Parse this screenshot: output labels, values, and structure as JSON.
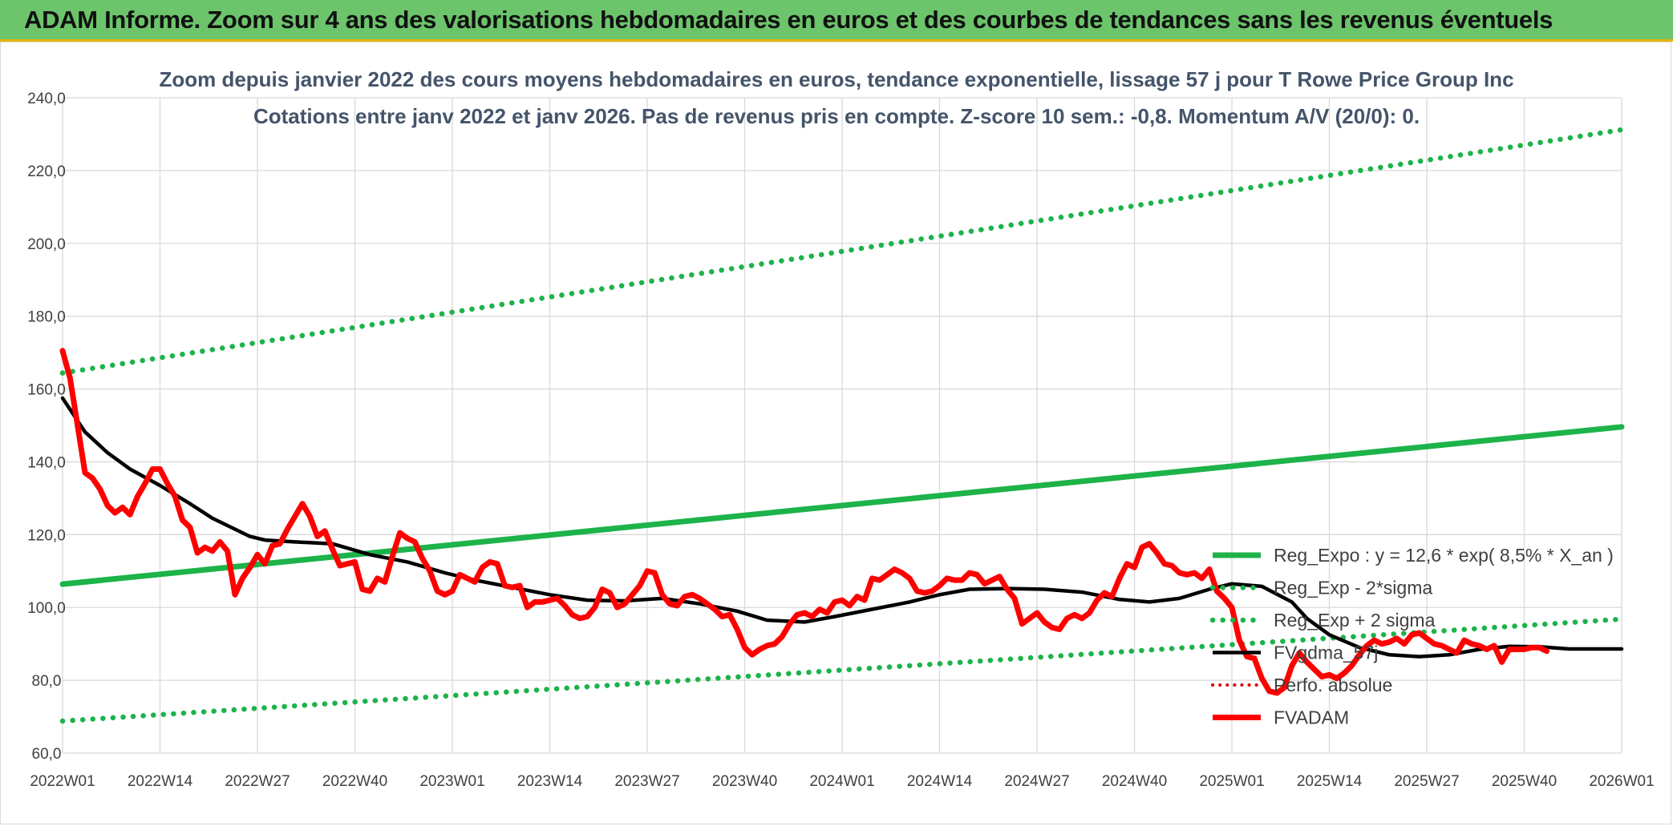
{
  "header": {
    "title": "ADAM Informe. Zoom sur 4 ans des valorisations hebdomadaires en euros et des courbes de tendances sans les revenus éventuels"
  },
  "colors": {
    "header_bg": "#6cc46b",
    "header_border": "#e8b400",
    "trend_green": "#1db34a",
    "price_red": "#ff0000",
    "ma_black": "#000000",
    "perf_red": "#e00000",
    "grid": "#d9d9d9"
  },
  "chart_data": {
    "type": "line",
    "title": "Zoom depuis janvier 2022 des cours moyens hebdomadaires en euros, tendance exponentielle, lissage 57 j pour T Rowe Price Group Inc",
    "subtitle": "Cotations entre janv 2022 et janv 2026. Pas de revenus pris en compte. Z-score 10 sem.: -0,8. Momentum A/V (20/0): 0.",
    "xlabel": "",
    "ylabel": "",
    "ylim": [
      60,
      240
    ],
    "y_ticks": [
      "60,0",
      "80,0",
      "100,0",
      "120,0",
      "140,0",
      "160,0",
      "180,0",
      "200,0",
      "220,0",
      "240,0"
    ],
    "x_ticks": [
      "2022W01",
      "2022W14",
      "2022W27",
      "2022W40",
      "2023W01",
      "2023W14",
      "2023W27",
      "2023W40",
      "2024W01",
      "2024W14",
      "2024W27",
      "2024W40",
      "2025W01",
      "2025W14",
      "2025W27",
      "2025W40",
      "2026W01"
    ],
    "x_tick_week_index": [
      0,
      13,
      26,
      39,
      52,
      65,
      78,
      91,
      104,
      117,
      130,
      143,
      156,
      169,
      182,
      195,
      208
    ],
    "x_range_weeks": [
      0,
      208
    ],
    "grid": true,
    "legend_position": "right, inside plot area",
    "series": [
      {
        "name": "Reg_Expo : y = 12,6 * exp( 8,5% *  X_an )",
        "style": "solid-thick",
        "color": "#1db34a",
        "points": [
          [
            0,
            106.4
          ],
          [
            208,
            149.6
          ]
        ]
      },
      {
        "name": "Reg_Exp - 2*sigma",
        "style": "dotted",
        "color": "#1db34a",
        "points": [
          [
            0,
            68.8
          ],
          [
            208,
            96.8
          ]
        ]
      },
      {
        "name": "Reg_Exp + 2 sigma",
        "style": "dotted",
        "color": "#1db34a",
        "points": [
          [
            0,
            164.4
          ],
          [
            208,
            231.2
          ]
        ]
      },
      {
        "name": "FVgdma_57j",
        "style": "solid-medium",
        "color": "#000000",
        "points": [
          [
            0,
            157.5
          ],
          [
            3,
            148.2
          ],
          [
            6,
            142.5
          ],
          [
            9,
            138.0
          ],
          [
            13,
            133.5
          ],
          [
            17,
            128.5
          ],
          [
            20,
            124.5
          ],
          [
            25,
            119.5
          ],
          [
            27,
            118.5
          ],
          [
            31,
            118.0
          ],
          [
            36,
            117.5
          ],
          [
            41,
            114.5
          ],
          [
            46,
            112.5
          ],
          [
            51,
            109.5
          ],
          [
            55,
            107.5
          ],
          [
            60,
            105.5
          ],
          [
            65,
            103.5
          ],
          [
            70,
            102.0
          ],
          [
            75,
            101.8
          ],
          [
            80,
            102.5
          ],
          [
            85,
            101.0
          ],
          [
            90,
            99.0
          ],
          [
            94,
            96.5
          ],
          [
            99,
            96.0
          ],
          [
            103,
            97.5
          ],
          [
            108,
            99.5
          ],
          [
            113,
            101.5
          ],
          [
            117,
            103.5
          ],
          [
            121,
            105.0
          ],
          [
            126,
            105.2
          ],
          [
            131,
            105.0
          ],
          [
            136,
            104.2
          ],
          [
            141,
            102.2
          ],
          [
            145,
            101.5
          ],
          [
            149,
            102.5
          ],
          [
            153,
            105.0
          ],
          [
            156,
            106.5
          ],
          [
            160,
            105.8
          ],
          [
            164,
            101.5
          ],
          [
            166,
            97.0
          ],
          [
            169,
            92.5
          ],
          [
            173,
            89.0
          ],
          [
            177,
            87.0
          ],
          [
            181,
            86.5
          ],
          [
            185,
            87.0
          ],
          [
            189,
            88.5
          ],
          [
            193,
            89.3
          ],
          [
            197,
            89.2
          ],
          [
            201,
            88.6
          ],
          [
            205,
            88.6
          ],
          [
            208,
            88.6
          ]
        ]
      },
      {
        "name": "Perfo. absolue",
        "style": "dotted-red",
        "color": "#e00000",
        "points": []
      },
      {
        "name": "FVADAM",
        "style": "solid-thick",
        "color": "#ff0000",
        "points": [
          [
            0,
            170.5
          ],
          [
            1,
            163.0
          ],
          [
            2,
            150.0
          ],
          [
            3,
            137.0
          ],
          [
            4,
            135.5
          ],
          [
            5,
            132.5
          ],
          [
            6,
            128.0
          ],
          [
            7,
            126.0
          ],
          [
            8,
            127.5
          ],
          [
            9,
            125.5
          ],
          [
            10,
            130.5
          ],
          [
            11,
            134.0
          ],
          [
            12,
            138.0
          ],
          [
            13,
            138.0
          ],
          [
            14,
            134.0
          ],
          [
            15,
            130.5
          ],
          [
            16,
            124.0
          ],
          [
            17,
            122.0
          ],
          [
            18,
            115.0
          ],
          [
            19,
            116.5
          ],
          [
            20,
            115.5
          ],
          [
            21,
            118.0
          ],
          [
            22,
            115.5
          ],
          [
            23,
            103.5
          ],
          [
            24,
            108.0
          ],
          [
            25,
            111.0
          ],
          [
            26,
            114.5
          ],
          [
            27,
            112.0
          ],
          [
            28,
            117.0
          ],
          [
            29,
            117.5
          ],
          [
            30,
            121.5
          ],
          [
            31,
            125.0
          ],
          [
            32,
            128.5
          ],
          [
            33,
            125.0
          ],
          [
            34,
            119.5
          ],
          [
            35,
            121.0
          ],
          [
            36,
            116.0
          ],
          [
            37,
            111.5
          ],
          [
            38,
            112.0
          ],
          [
            39,
            112.5
          ],
          [
            40,
            105.0
          ],
          [
            41,
            104.5
          ],
          [
            42,
            108.0
          ],
          [
            43,
            107.0
          ],
          [
            44,
            114.0
          ],
          [
            45,
            120.5
          ],
          [
            46,
            119.0
          ],
          [
            47,
            118.0
          ],
          [
            48,
            113.5
          ],
          [
            49,
            110.0
          ],
          [
            50,
            104.5
          ],
          [
            51,
            103.5
          ],
          [
            52,
            104.5
          ],
          [
            53,
            109.0
          ],
          [
            54,
            108.0
          ],
          [
            55,
            107.0
          ],
          [
            56,
            111.0
          ],
          [
            57,
            112.5
          ],
          [
            58,
            112.0
          ],
          [
            59,
            106.0
          ],
          [
            60,
            105.5
          ],
          [
            61,
            106.0
          ],
          [
            62,
            100.0
          ],
          [
            63,
            101.5
          ],
          [
            64,
            101.5
          ],
          [
            65,
            102.0
          ],
          [
            66,
            102.5
          ],
          [
            67,
            100.5
          ],
          [
            68,
            98.0
          ],
          [
            69,
            97.0
          ],
          [
            70,
            97.5
          ],
          [
            71,
            100.0
          ],
          [
            72,
            105.0
          ],
          [
            73,
            104.0
          ],
          [
            74,
            100.0
          ],
          [
            75,
            101.0
          ],
          [
            76,
            103.5
          ],
          [
            77,
            106.0
          ],
          [
            78,
            110.0
          ],
          [
            79,
            109.5
          ],
          [
            80,
            103.5
          ],
          [
            81,
            101.0
          ],
          [
            82,
            100.5
          ],
          [
            83,
            103.0
          ],
          [
            84,
            103.5
          ],
          [
            85,
            102.5
          ],
          [
            86,
            101.0
          ],
          [
            87,
            99.5
          ],
          [
            88,
            97.5
          ],
          [
            89,
            98.0
          ],
          [
            90,
            94.0
          ],
          [
            91,
            89.0
          ],
          [
            92,
            87.0
          ],
          [
            93,
            88.5
          ],
          [
            94,
            89.5
          ],
          [
            95,
            90.0
          ],
          [
            96,
            92.0
          ],
          [
            97,
            95.5
          ],
          [
            98,
            98.0
          ],
          [
            99,
            98.5
          ],
          [
            100,
            97.5
          ],
          [
            101,
            99.5
          ],
          [
            102,
            98.5
          ],
          [
            103,
            101.5
          ],
          [
            104,
            102.0
          ],
          [
            105,
            100.5
          ],
          [
            106,
            103.0
          ],
          [
            107,
            102.0
          ],
          [
            108,
            108.0
          ],
          [
            109,
            107.5
          ],
          [
            110,
            109.0
          ],
          [
            111,
            110.5
          ],
          [
            112,
            109.5
          ],
          [
            113,
            108.0
          ],
          [
            114,
            104.5
          ],
          [
            115,
            104.0
          ],
          [
            116,
            104.5
          ],
          [
            117,
            106.0
          ],
          [
            118,
            108.0
          ],
          [
            119,
            107.5
          ],
          [
            120,
            107.5
          ],
          [
            121,
            109.5
          ],
          [
            122,
            109.0
          ],
          [
            123,
            106.5
          ],
          [
            124,
            107.5
          ],
          [
            125,
            108.5
          ],
          [
            126,
            105.0
          ],
          [
            127,
            102.5
          ],
          [
            128,
            95.5
          ],
          [
            129,
            97.0
          ],
          [
            130,
            98.5
          ],
          [
            131,
            96.0
          ],
          [
            132,
            94.5
          ],
          [
            133,
            94.0
          ],
          [
            134,
            97.0
          ],
          [
            135,
            98.0
          ],
          [
            136,
            97.0
          ],
          [
            137,
            98.5
          ],
          [
            138,
            102.0
          ],
          [
            139,
            104.0
          ],
          [
            140,
            103.0
          ],
          [
            141,
            108.0
          ],
          [
            142,
            112.0
          ],
          [
            143,
            111.0
          ],
          [
            144,
            116.5
          ],
          [
            145,
            117.5
          ],
          [
            146,
            115.0
          ],
          [
            147,
            112.0
          ],
          [
            148,
            111.5
          ],
          [
            149,
            109.5
          ],
          [
            150,
            109.0
          ],
          [
            151,
            109.5
          ],
          [
            152,
            108.0
          ],
          [
            153,
            110.5
          ],
          [
            154,
            104.5
          ],
          [
            155,
            102.5
          ],
          [
            156,
            100.0
          ],
          [
            157,
            91.0
          ],
          [
            158,
            86.5
          ],
          [
            159,
            86.0
          ],
          [
            160,
            80.5
          ],
          [
            161,
            77.0
          ],
          [
            162,
            76.5
          ],
          [
            163,
            78.0
          ],
          [
            164,
            84.0
          ],
          [
            165,
            87.5
          ],
          [
            166,
            85.0
          ],
          [
            167,
            83.0
          ],
          [
            168,
            81.0
          ],
          [
            169,
            81.5
          ],
          [
            170,
            80.5
          ],
          [
            171,
            82.0
          ],
          [
            172,
            84.0
          ],
          [
            173,
            87.0
          ],
          [
            174,
            89.5
          ],
          [
            175,
            91.0
          ],
          [
            176,
            90.0
          ],
          [
            177,
            90.5
          ],
          [
            178,
            91.5
          ],
          [
            179,
            90.0
          ],
          [
            180,
            92.5
          ],
          [
            181,
            93.0
          ],
          [
            182,
            91.5
          ],
          [
            183,
            90.0
          ],
          [
            184,
            89.5
          ],
          [
            185,
            88.5
          ],
          [
            186,
            87.5
          ],
          [
            187,
            91.0
          ],
          [
            188,
            90.0
          ],
          [
            189,
            89.5
          ],
          [
            190,
            88.5
          ],
          [
            191,
            89.5
          ],
          [
            192,
            85.0
          ],
          [
            193,
            88.5
          ],
          [
            194,
            88.5
          ],
          [
            195,
            88.5
          ],
          [
            196,
            89.0
          ],
          [
            197,
            89.0
          ],
          [
            198,
            88.0
          ]
        ]
      }
    ]
  }
}
